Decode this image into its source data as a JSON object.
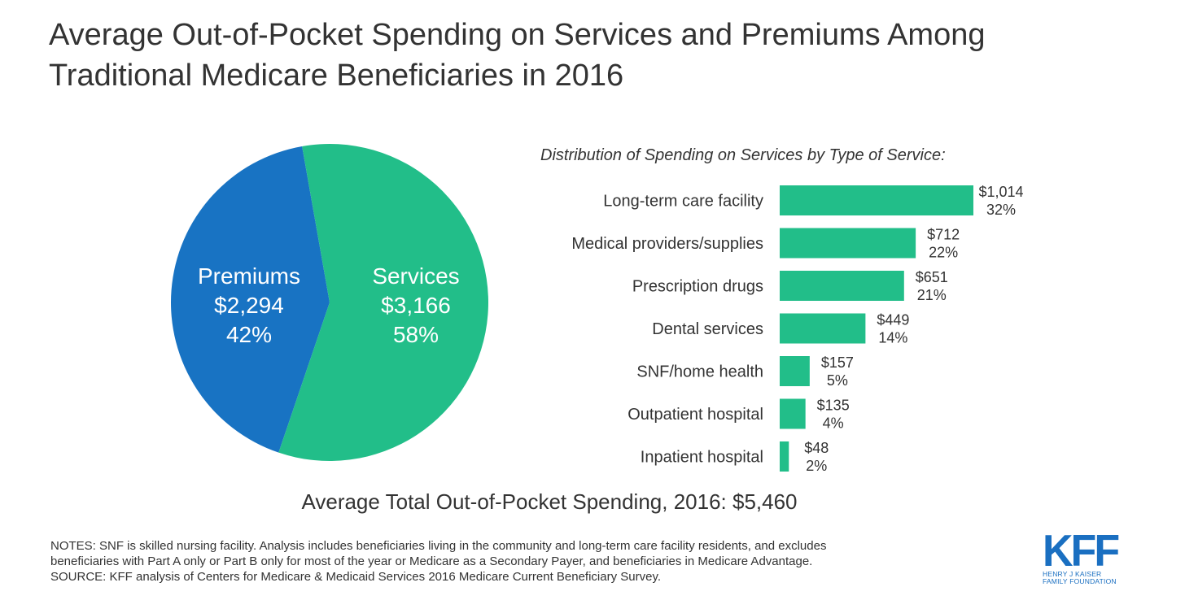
{
  "title": "Average Out-of-Pocket Spending on Services and Premiums Among Traditional Medicare Beneficiaries in 2016",
  "colors": {
    "premiums": "#1873c3",
    "services": "#22be89",
    "text": "#333333",
    "brand": "#1a6fc1"
  },
  "chart_data": [
    {
      "type": "pie",
      "title": "",
      "slices": [
        {
          "name": "Premiums",
          "value": 2294,
          "percent": 42,
          "value_label": "$2,294",
          "percent_label": "42%"
        },
        {
          "name": "Services",
          "value": 3166,
          "percent": 58,
          "value_label": "$3,166",
          "percent_label": "58%"
        }
      ]
    },
    {
      "type": "bar",
      "orientation": "horizontal",
      "title": "Distribution of Spending on Services by Type of Service:",
      "categories": [
        "Long-term care facility",
        "Medical providers/supplies",
        "Prescription drugs",
        "Dental services",
        "SNF/home health",
        "Outpatient hospital",
        "Inpatient hospital"
      ],
      "values": [
        1014,
        712,
        651,
        449,
        157,
        135,
        48
      ],
      "value_labels": [
        "$1,014",
        "$712",
        "$651",
        "$449",
        "$157",
        "$135",
        "$48"
      ],
      "percent_labels": [
        "32%",
        "22%",
        "21%",
        "14%",
        "5%",
        "4%",
        "2%"
      ],
      "xlim": [
        0,
        1014
      ]
    }
  ],
  "total_label": "Average Total Out-of-Pocket Spending, 2016: $5,460",
  "notes": [
    "NOTES: SNF is skilled nursing facility. Analysis includes beneficiaries living in the community and long-term care facility residents, and excludes",
    "beneficiaries with Part A only or Part B only for most of the year or Medicare as a Secondary Payer, and beneficiaries in Medicare Advantage.",
    "SOURCE: KFF analysis of Centers for Medicare & Medicaid Services 2016 Medicare Current Beneficiary Survey."
  ],
  "logo": {
    "mark": "KFF",
    "line1": "HENRY J KAISER",
    "line2": "FAMILY FOUNDATION"
  }
}
